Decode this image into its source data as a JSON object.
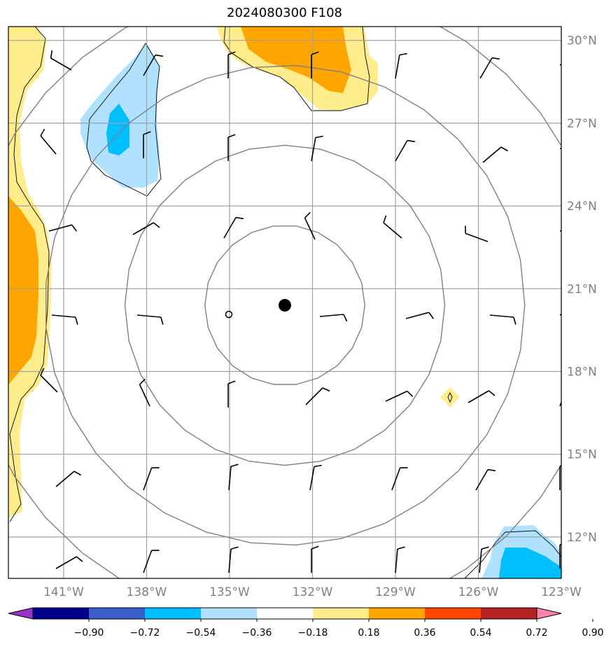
{
  "title": "2024080300 F108",
  "map": {
    "lon_range": [
      -143,
      -123
    ],
    "lat_range": [
      10.5,
      30.5
    ],
    "lat_ticks": [
      {
        "value": 30,
        "label": "30°N"
      },
      {
        "value": 27,
        "label": "27°N"
      },
      {
        "value": 24,
        "label": "24°N"
      },
      {
        "value": 21,
        "label": "21°N"
      },
      {
        "value": 18,
        "label": "18°N"
      },
      {
        "value": 15,
        "label": "15°N"
      },
      {
        "value": 12,
        "label": "12°N"
      }
    ],
    "lon_ticks": [
      {
        "value": -141,
        "label": "141°W"
      },
      {
        "value": -138,
        "label": "138°W"
      },
      {
        "value": -135,
        "label": "135°W"
      },
      {
        "value": -132,
        "label": "132°W"
      },
      {
        "value": -129,
        "label": "129°W"
      },
      {
        "value": -126,
        "label": "126°W"
      },
      {
        "value": -123,
        "label": "123°W"
      }
    ],
    "center": {
      "lon": -133,
      "lat": 20.4
    },
    "range_ring_radii_deg": [
      2.9,
      5.8,
      8.7,
      11.6
    ]
  },
  "colorbar": {
    "labels": [
      "−0.90",
      "−0.72",
      "−0.54",
      "−0.36",
      "−0.18",
      "0.18",
      "0.36",
      "0.54",
      "0.72",
      "0.90"
    ],
    "colors": [
      "#9932cc",
      "#00008b",
      "#3a5fcd",
      "#00bfff",
      "#b0e2ff",
      "#ffffff",
      "#ffec8b",
      "#ffa500",
      "#ff4500",
      "#b22222",
      "#ff82ab"
    ]
  }
}
